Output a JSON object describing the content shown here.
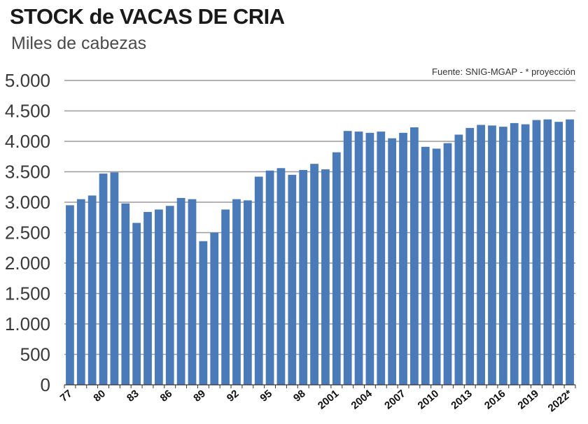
{
  "header": {
    "title": "STOCK de VACAS DE CRIA",
    "subtitle": "Miles de cabezas",
    "source": "Fuente: SNIG-MGAP - * proyección"
  },
  "colors": {
    "bar": "#4a7ab8",
    "grid": "#9a9a9a",
    "axis": "#333333"
  },
  "chart_data": {
    "type": "bar",
    "title": "STOCK de VACAS DE CRIA",
    "subtitle": "Miles de cabezas",
    "ylabel": "",
    "xlabel": "",
    "ylim": [
      0,
      5000
    ],
    "yticks": [
      0,
      500,
      1000,
      1500,
      2000,
      2500,
      3000,
      3500,
      4000,
      4500,
      5000
    ],
    "ytick_labels": [
      "0",
      "500",
      "1.000",
      "1.500",
      "2.000",
      "2.500",
      "3.000",
      "3.500",
      "4.000",
      "4.500",
      "5.000"
    ],
    "grid": "horizontal",
    "categories": [
      "77",
      "78",
      "79",
      "80",
      "81",
      "82",
      "83",
      "84",
      "85",
      "86",
      "87",
      "88",
      "89",
      "90",
      "91",
      "92",
      "93",
      "94",
      "95",
      "96",
      "97",
      "98",
      "99",
      "2000",
      "2001",
      "2002",
      "2003",
      "2004",
      "2005",
      "2006",
      "2007",
      "2008",
      "2009",
      "2010",
      "2011",
      "2012",
      "2013",
      "2014",
      "2015",
      "2016",
      "2017",
      "2018",
      "2019",
      "2020",
      "2021",
      "2022*"
    ],
    "x_tick_labels": [
      "77",
      "80",
      "83",
      "86",
      "89",
      "92",
      "95",
      "98",
      "2001",
      "2004",
      "2007",
      "2010",
      "2013",
      "2016",
      "2019",
      "2022*"
    ],
    "values": [
      2950,
      3050,
      3110,
      3470,
      3490,
      2980,
      2660,
      2840,
      2880,
      2940,
      3070,
      3050,
      2360,
      2500,
      2880,
      3050,
      3030,
      3420,
      3520,
      3560,
      3450,
      3530,
      3630,
      3540,
      3820,
      4170,
      4160,
      4140,
      4160,
      4050,
      4140,
      4230,
      3910,
      3880,
      3970,
      4110,
      4220,
      4270,
      4260,
      4240,
      4300,
      4280,
      4350,
      4360,
      4320,
      4360
    ]
  }
}
